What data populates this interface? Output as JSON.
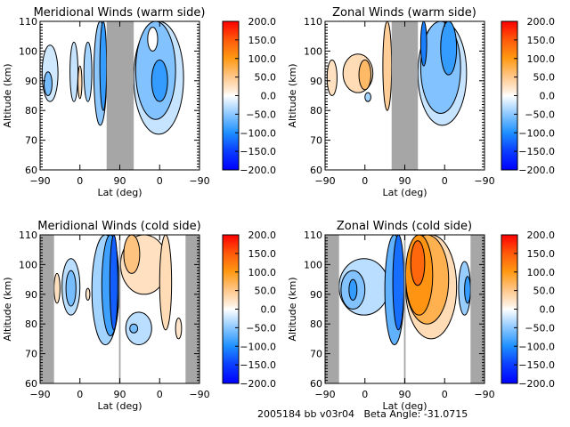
{
  "footer": {
    "text": "2005184 bb v03r04   Beta Angle: -31.0715"
  },
  "colors": {
    "grey_mask": "#a6a6a6",
    "contour_line": "#000000"
  },
  "colorscale": {
    "stops": [
      {
        "v": -200,
        "c": "#0000ff"
      },
      {
        "v": -150,
        "c": "#0a3cff"
      },
      {
        "v": -100,
        "c": "#1e90ff"
      },
      {
        "v": -50,
        "c": "#8cc8ff"
      },
      {
        "v": -10,
        "c": "#e8f4ff"
      },
      {
        "v": 0,
        "c": "#ffffff"
      },
      {
        "v": 10,
        "c": "#fff0e0"
      },
      {
        "v": 50,
        "c": "#ffc88c"
      },
      {
        "v": 100,
        "c": "#ff9a14"
      },
      {
        "v": 150,
        "c": "#ff5a0a"
      },
      {
        "v": 200,
        "c": "#ff0000"
      }
    ],
    "ticks": [
      "200.0",
      "150.0",
      "100.0",
      "50.0",
      "0.0",
      "−50.0",
      "−100.0",
      "−150.0",
      "−200.0"
    ],
    "range": [
      -200,
      200
    ]
  },
  "chart_data": [
    {
      "type": "heatmap",
      "title": "Meridional Winds (warm side)",
      "xlabel": "Lat (deg)",
      "ylabel": "Altitude (km)",
      "xticks": [
        "−90",
        "0",
        "90",
        "0",
        "−90"
      ],
      "yticks": [
        "60",
        "70",
        "80",
        "90",
        "100",
        "110"
      ],
      "ylim": [
        60,
        110
      ],
      "xlim_index": [
        0,
        4
      ],
      "masked_x_ranges": [
        [
          1.67,
          2.35
        ]
      ],
      "features": [
        {
          "x": [
            0.05,
            0.45
          ],
          "y": [
            83,
            102
          ],
          "v": -20
        },
        {
          "x": [
            0.1,
            0.3
          ],
          "y": [
            85,
            93
          ],
          "v": -60
        },
        {
          "x": [
            0.75,
            0.95
          ],
          "y": [
            83,
            103
          ],
          "v": -25
        },
        {
          "x": [
            0.95,
            1.05
          ],
          "y": [
            84,
            95
          ],
          "v": 30
        },
        {
          "x": [
            1.1,
            1.3
          ],
          "y": [
            83,
            103
          ],
          "v": -40
        },
        {
          "x": [
            1.35,
            1.67
          ],
          "y": [
            75,
            110
          ],
          "v": -50
        },
        {
          "x": [
            1.5,
            1.67
          ],
          "y": [
            80,
            110
          ],
          "v": -90
        },
        {
          "x": [
            2.35,
            3.6
          ],
          "y": [
            72,
            110
          ],
          "v": -25
        },
        {
          "x": [
            2.4,
            3.4
          ],
          "y": [
            77,
            110
          ],
          "v": -55
        },
        {
          "x": [
            2.8,
            3.2
          ],
          "y": [
            83,
            97
          ],
          "v": -90
        },
        {
          "x": [
            2.7,
            2.95
          ],
          "y": [
            100,
            108
          ],
          "v": 0
        }
      ]
    },
    {
      "type": "heatmap",
      "title": "Zonal Winds (warm side)",
      "xlabel": "Lat (deg)",
      "ylabel": "Altitude (km)",
      "xticks": [
        "−90",
        "0",
        "90",
        "0",
        "−90"
      ],
      "yticks": [
        "60",
        "70",
        "80",
        "90",
        "100",
        "110"
      ],
      "ylim": [
        60,
        110
      ],
      "xlim_index": [
        0,
        4
      ],
      "masked_x_ranges": [
        [
          1.67,
          2.33
        ]
      ],
      "features": [
        {
          "x": [
            0.05,
            0.3
          ],
          "y": [
            85,
            97
          ],
          "v": 25
        },
        {
          "x": [
            0.45,
            1.2
          ],
          "y": [
            86,
            99
          ],
          "v": 30
        },
        {
          "x": [
            0.85,
            1.15
          ],
          "y": [
            87,
            97
          ],
          "v": 65
        },
        {
          "x": [
            1.45,
            1.67
          ],
          "y": [
            80,
            110
          ],
          "v": 45
        },
        {
          "x": [
            1.0,
            1.15
          ],
          "y": [
            83,
            86
          ],
          "v": -40
        },
        {
          "x": [
            2.33,
            3.55
          ],
          "y": [
            75,
            110
          ],
          "v": -25
        },
        {
          "x": [
            2.4,
            3.4
          ],
          "y": [
            79,
            110
          ],
          "v": -55
        },
        {
          "x": [
            2.9,
            3.3
          ],
          "y": [
            92,
            110
          ],
          "v": -90
        },
        {
          "x": [
            2.4,
            2.55
          ],
          "y": [
            95,
            110
          ],
          "v": -110
        }
      ]
    },
    {
      "type": "heatmap",
      "title": "Meridional Winds (cold side)",
      "xlabel": "Lat (deg)",
      "ylabel": "Altitude (km)",
      "xticks": [
        "−90",
        "0",
        "90",
        "0",
        "−90"
      ],
      "yticks": [
        "60",
        "70",
        "80",
        "90",
        "100",
        "110"
      ],
      "ylim": [
        60,
        110
      ],
      "xlim_index": [
        0,
        4
      ],
      "masked_x_ranges": [
        [
          0.0,
          0.35
        ],
        [
          3.65,
          4.0
        ],
        [
          1.98,
          2.02
        ]
      ],
      "features": [
        {
          "x": [
            0.35,
            0.5
          ],
          "y": [
            87,
            97
          ],
          "v": 25
        },
        {
          "x": [
            0.55,
            1.0
          ],
          "y": [
            83,
            102
          ],
          "v": -30
        },
        {
          "x": [
            0.65,
            0.9
          ],
          "y": [
            86,
            98
          ],
          "v": -60
        },
        {
          "x": [
            1.15,
            1.25
          ],
          "y": [
            88,
            92
          ],
          "v": 20
        },
        {
          "x": [
            1.3,
            1.98
          ],
          "y": [
            73,
            110
          ],
          "v": -40
        },
        {
          "x": [
            1.55,
            1.98
          ],
          "y": [
            76,
            110
          ],
          "v": -85
        },
        {
          "x": [
            1.75,
            1.95
          ],
          "y": [
            78,
            110
          ],
          "v": -130
        },
        {
          "x": [
            2.02,
            3.2
          ],
          "y": [
            90,
            110
          ],
          "v": 25
        },
        {
          "x": [
            2.1,
            2.5
          ],
          "y": [
            97,
            110
          ],
          "v": 55
        },
        {
          "x": [
            2.15,
            2.8
          ],
          "y": [
            73,
            84
          ],
          "v": -30
        },
        {
          "x": [
            2.25,
            2.45
          ],
          "y": [
            77,
            80
          ],
          "v": -60
        },
        {
          "x": [
            3.0,
            3.3
          ],
          "y": [
            78,
            110
          ],
          "v": 30
        },
        {
          "x": [
            3.4,
            3.55
          ],
          "y": [
            75,
            82
          ],
          "v": 20
        }
      ]
    },
    {
      "type": "heatmap",
      "title": "Zonal Winds (cold side)",
      "xlabel": "Lat (deg)",
      "ylabel": "Altitude (km)",
      "xticks": [
        "−90",
        "0",
        "90",
        "0",
        "−90"
      ],
      "yticks": [
        "60",
        "70",
        "80",
        "90",
        "100",
        "110"
      ],
      "ylim": [
        60,
        110
      ],
      "xlim_index": [
        0,
        4
      ],
      "masked_x_ranges": [
        [
          0.0,
          0.35
        ],
        [
          3.65,
          4.0
        ],
        [
          1.98,
          2.02
        ]
      ],
      "features": [
        {
          "x": [
            0.35,
            1.6
          ],
          "y": [
            83,
            102
          ],
          "v": -30
        },
        {
          "x": [
            0.4,
            1.0
          ],
          "y": [
            85,
            98
          ],
          "v": -55
        },
        {
          "x": [
            0.6,
            0.8
          ],
          "y": [
            88,
            95
          ],
          "v": -90
        },
        {
          "x": [
            1.5,
            1.98
          ],
          "y": [
            73,
            110
          ],
          "v": -70
        },
        {
          "x": [
            1.7,
            1.98
          ],
          "y": [
            78,
            110
          ],
          "v": -120
        },
        {
          "x": [
            2.02,
            3.3
          ],
          "y": [
            75,
            110
          ],
          "v": 30
        },
        {
          "x": [
            2.02,
            3.1
          ],
          "y": [
            80,
            110
          ],
          "v": 75
        },
        {
          "x": [
            2.02,
            2.7
          ],
          "y": [
            83,
            110
          ],
          "v": 105
        },
        {
          "x": [
            2.15,
            2.5
          ],
          "y": [
            93,
            108
          ],
          "v": 140
        },
        {
          "x": [
            3.35,
            3.65
          ],
          "y": [
            83,
            101
          ],
          "v": -45
        },
        {
          "x": [
            3.5,
            3.65
          ],
          "y": [
            87,
            96
          ],
          "v": -90
        }
      ]
    }
  ]
}
